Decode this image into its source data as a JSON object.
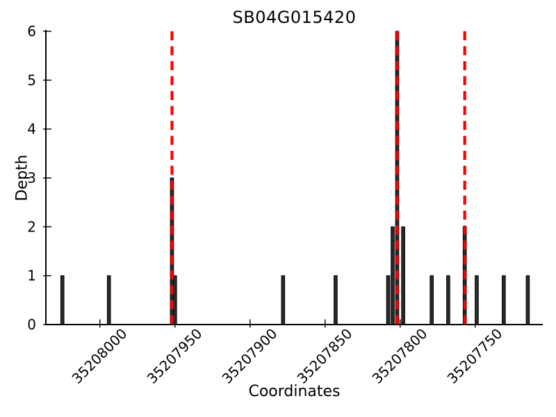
{
  "figure": {
    "title": "SB04G015420",
    "xlabel": "Coordinates",
    "ylabel": "Depth"
  },
  "chart_data": {
    "type": "bar",
    "title": "SB04G015420",
    "xlabel": "Coordinates",
    "ylabel": "Depth",
    "x_axis_descending": true,
    "xlim": [
      35208036,
      35207705
    ],
    "ylim": [
      0,
      6
    ],
    "xticks": [
      35208000,
      35207950,
      35207900,
      35207850,
      35207800,
      35207750
    ],
    "yticks": [
      0,
      1,
      2,
      3,
      4,
      5,
      6
    ],
    "grid": false,
    "legend": "none",
    "series": [
      {
        "name": "read-depth",
        "style": "vertical-bars",
        "x": [
          35208025,
          35207994,
          35207952,
          35207950,
          35207878,
          35207843,
          35207808,
          35207805,
          35207802,
          35207798,
          35207779,
          35207768,
          35207757,
          35207749,
          35207731,
          35207715
        ],
        "depth": [
          1,
          1,
          3,
          1,
          1,
          1,
          1,
          2,
          6,
          2,
          1,
          1,
          2,
          1,
          1,
          1
        ]
      }
    ],
    "marker_lines": {
      "name": "snp-marker-lines",
      "style": "dashed-vertical",
      "x": [
        35207952,
        35207802,
        35207757
      ],
      "y_span": [
        0,
        6
      ]
    }
  },
  "colors": {
    "background": "#ffffff",
    "bar_fill": "#2a2a2a",
    "bar_edge": "#000000",
    "marker_line": "#ff0000",
    "axis": "#000000",
    "text": "#000000"
  }
}
